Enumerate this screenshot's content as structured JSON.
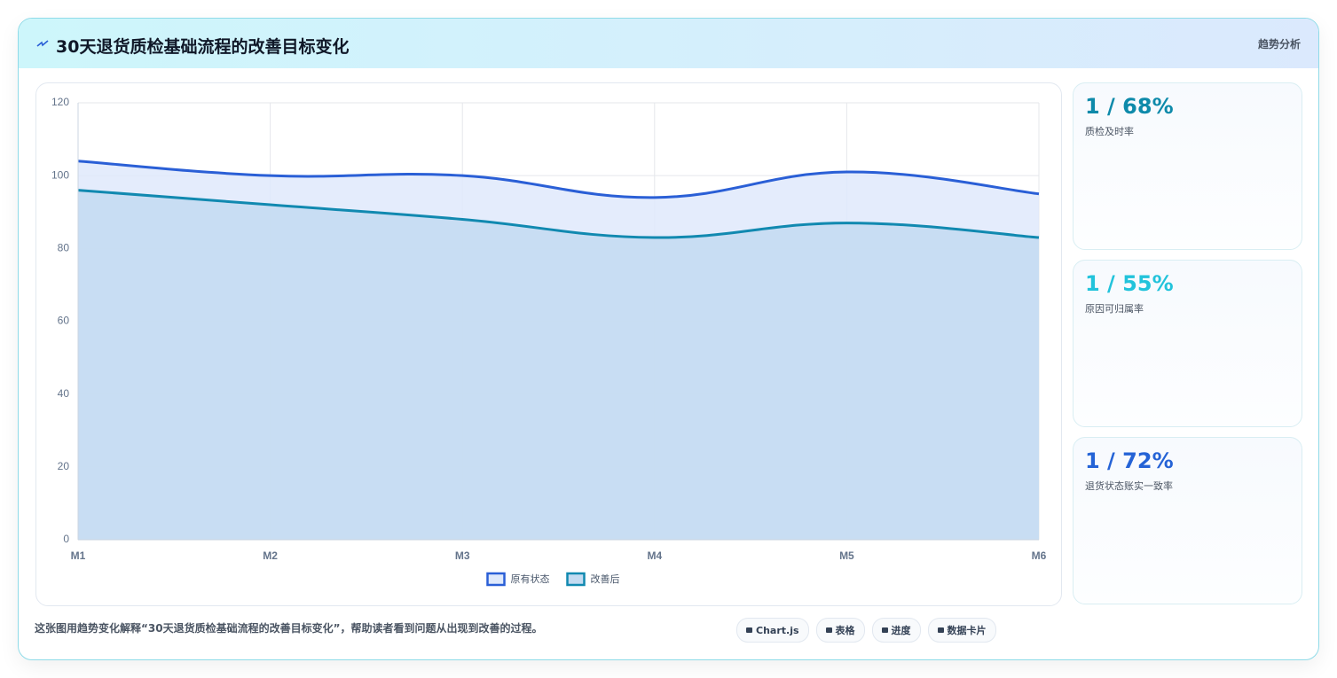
{
  "header": {
    "title": "30天退货质检基础流程的改善目标变化",
    "tag": "趋势分析"
  },
  "chart_data": {
    "type": "line",
    "categories": [
      "M1",
      "M2",
      "M3",
      "M4",
      "M5",
      "M6"
    ],
    "series": [
      {
        "name": "原有状态",
        "color": "#2a5fd6",
        "fill": "#dfe9fb",
        "values": [
          104,
          100,
          100,
          94,
          101,
          95
        ]
      },
      {
        "name": "改善后",
        "color": "#1189b0",
        "fill": "#c3dbf1",
        "values": [
          96,
          92,
          88,
          83,
          87,
          83
        ]
      }
    ],
    "ylim": [
      0,
      120
    ],
    "yticks": [
      0,
      20,
      40,
      60,
      80,
      100,
      120
    ],
    "grid": true,
    "legend": "bottom"
  },
  "cards": [
    {
      "value": "1 / 68%",
      "label": "质检及时率",
      "color": "#0e8aaa"
    },
    {
      "value": "1 / 55%",
      "label": "原因可归属率",
      "color": "#22c3db"
    },
    {
      "value": "1 / 72%",
      "label": "退货状态账实一致率",
      "color": "#2563d6"
    }
  ],
  "footer": {
    "note": "这张图用趋势变化解释“30天退货质检基础流程的改善目标变化”，帮助读者看到问题从出现到改善的过程。",
    "pills": [
      "Chart.js",
      "表格",
      "进度",
      "数据卡片"
    ]
  }
}
